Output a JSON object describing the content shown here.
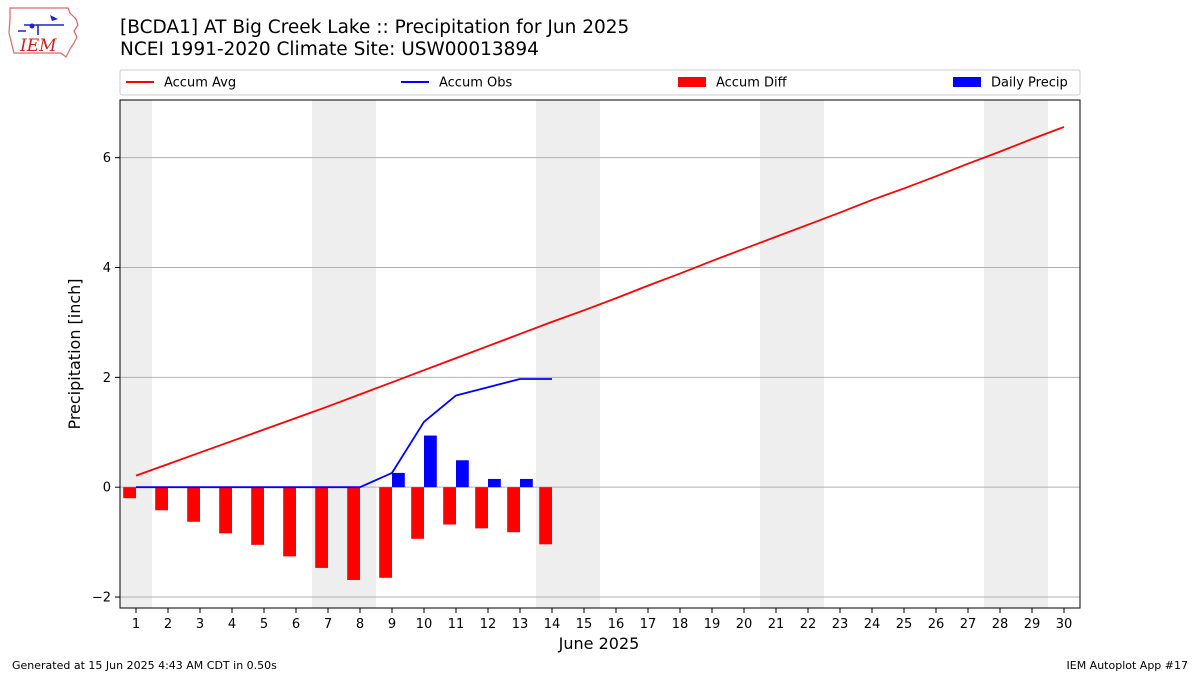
{
  "header": {
    "title_line1": "[BCDA1] AT Big Creek Lake :: Precipitation for Jun 2025",
    "title_line2": "NCEI 1991-2020 Climate Site: USW00013894",
    "logo_text": "IEM"
  },
  "footer": {
    "generated": "Generated at 15 Jun 2025 4:43 AM CDT in 0.50s",
    "app": "IEM Autoplot App #17"
  },
  "colors": {
    "avg": "#ff0000",
    "obs": "#0000ff",
    "diff": "#ff0000",
    "daily": "#0000ff",
    "weekend": "#eeeeee",
    "grid": "#b0b0b0"
  },
  "chart_data": {
    "type": "bar",
    "xlabel": "June 2025",
    "ylabel": "Precipitation [inch]",
    "xlim": [
      0.5,
      30.5
    ],
    "ylim": [
      -2.2,
      7.05
    ],
    "yticks": [
      -2,
      0,
      2,
      4,
      6
    ],
    "grid": true,
    "legend_position": "top",
    "days": [
      1,
      2,
      3,
      4,
      5,
      6,
      7,
      8,
      9,
      10,
      11,
      12,
      13,
      14,
      15,
      16,
      17,
      18,
      19,
      20,
      21,
      22,
      23,
      24,
      25,
      26,
      27,
      28,
      29,
      30
    ],
    "weekend_days": [
      1,
      7,
      8,
      14,
      15,
      21,
      22,
      28,
      29
    ],
    "series": [
      {
        "name": "Accum Avg",
        "kind": "line",
        "x": [
          1,
          2,
          3,
          4,
          5,
          6,
          7,
          8,
          9,
          10,
          11,
          12,
          13,
          14,
          15,
          16,
          17,
          18,
          19,
          20,
          21,
          22,
          23,
          24,
          25,
          26,
          27,
          28,
          29,
          30
        ],
        "values": [
          0.21,
          0.42,
          0.63,
          0.84,
          1.05,
          1.26,
          1.47,
          1.69,
          1.91,
          2.13,
          2.35,
          2.57,
          2.79,
          3.01,
          3.22,
          3.44,
          3.67,
          3.89,
          4.12,
          4.34,
          4.56,
          4.78,
          5.0,
          5.23,
          5.44,
          5.66,
          5.89,
          6.11,
          6.34,
          6.56
        ]
      },
      {
        "name": "Accum Obs",
        "kind": "line",
        "x": [
          1,
          2,
          3,
          4,
          5,
          6,
          7,
          8,
          9,
          10,
          11,
          12,
          13,
          14
        ],
        "values": [
          0,
          0,
          0,
          0,
          0,
          0,
          0,
          0,
          0.26,
          1.19,
          1.67,
          1.82,
          1.97,
          1.97
        ]
      },
      {
        "name": "Accum Diff",
        "kind": "bar",
        "x": [
          1,
          2,
          3,
          4,
          5,
          6,
          7,
          8,
          9,
          10,
          11,
          12,
          13,
          14
        ],
        "values": [
          -0.2,
          -0.42,
          -0.63,
          -0.84,
          -1.05,
          -1.26,
          -1.47,
          -1.69,
          -1.65,
          -0.94,
          -0.68,
          -0.75,
          -0.82,
          -1.04
        ]
      },
      {
        "name": "Daily Precip",
        "kind": "bar",
        "x": [
          9,
          10,
          11,
          12,
          13
        ],
        "values": [
          0.26,
          0.94,
          0.49,
          0.15,
          0.15
        ]
      }
    ]
  }
}
